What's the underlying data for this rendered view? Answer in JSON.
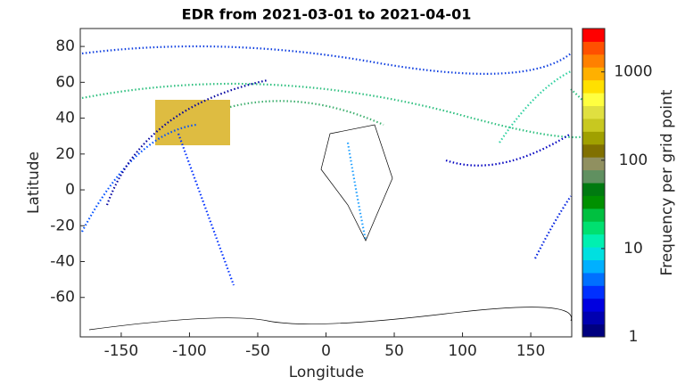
{
  "chart_data": {
    "type": "map",
    "title": "EDR from 2021-03-01 to 2021-04-01",
    "xlabel": "Longitude",
    "ylabel": "Latitude",
    "xlim": [
      -180,
      180
    ],
    "ylim": [
      -82,
      90
    ],
    "xticks": [
      -150,
      -100,
      -50,
      0,
      50,
      100,
      150
    ],
    "yticks": [
      -60,
      -40,
      -20,
      0,
      20,
      40,
      60,
      80
    ],
    "colorbar": {
      "label": "Frequency per grid point",
      "log_scale": true,
      "clim": [
        1,
        3100
      ],
      "ticks": [
        1,
        10,
        100,
        1000
      ],
      "colors": [
        "#00007f",
        "#0000b0",
        "#0000e0",
        "#0030ff",
        "#0070ff",
        "#00b0ff",
        "#00e0e0",
        "#00f0b0",
        "#00e070",
        "#00c040",
        "#009000",
        "#007a10",
        "#609060",
        "#909060",
        "#807000",
        "#a0a000",
        "#c8c820",
        "#e0e040",
        "#ffff40",
        "#ffe000",
        "#ffb000",
        "#ff8000",
        "#ff5000",
        "#ff0000"
      ]
    }
  }
}
